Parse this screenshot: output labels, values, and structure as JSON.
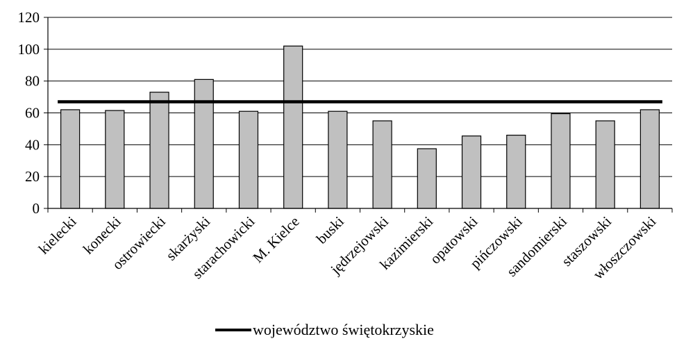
{
  "chart_data": {
    "type": "bar",
    "title": "",
    "xlabel": "",
    "ylabel": "",
    "ylim": [
      0,
      120
    ],
    "yticks": [
      0,
      20,
      40,
      60,
      80,
      100,
      120
    ],
    "grid": true,
    "legend_position": "bottom",
    "categories": [
      "kielecki",
      "konecki",
      "ostrowiecki",
      "skarżyski",
      "starachowicki",
      "M. Kielce",
      "buski",
      "jędrzejowski",
      "kazimierski",
      "opatowski",
      "pińczowski",
      "sandomierski",
      "staszowski",
      "włoszczowski"
    ],
    "series": [
      {
        "type": "bar",
        "values": [
          62,
          61.5,
          73,
          81,
          61,
          102,
          61,
          55,
          37.5,
          45.5,
          46,
          59.5,
          55,
          62
        ],
        "color": "#c0c0c0"
      },
      {
        "type": "line",
        "name": "województwo świętokrzyskie",
        "value": 67,
        "color": "#000000"
      }
    ]
  }
}
